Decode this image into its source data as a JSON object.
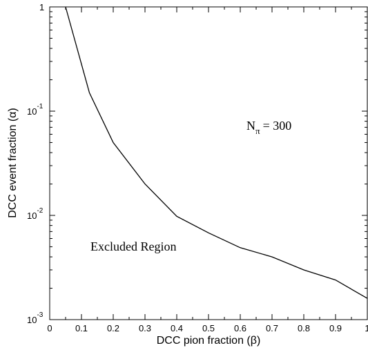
{
  "chart_data": {
    "type": "line",
    "xlabel": "DCC pion fraction (β)",
    "ylabel": "DCC event fraction (α)",
    "xlim": [
      0,
      1
    ],
    "ylim": [
      0.001,
      1
    ],
    "y_scale": "log",
    "grid": false,
    "x_ticks": [
      {
        "value": 0,
        "label": "0"
      },
      {
        "value": 0.1,
        "label": "0.1"
      },
      {
        "value": 0.2,
        "label": "0.2"
      },
      {
        "value": 0.3,
        "label": "0.3"
      },
      {
        "value": 0.4,
        "label": "0.4"
      },
      {
        "value": 0.5,
        "label": "0.5"
      },
      {
        "value": 0.6,
        "label": "0.6"
      },
      {
        "value": 0.7,
        "label": "0.7"
      },
      {
        "value": 0.8,
        "label": "0.8"
      },
      {
        "value": 0.9,
        "label": "0.9"
      },
      {
        "value": 1,
        "label": "1"
      }
    ],
    "y_ticks": [
      {
        "value": 1,
        "base": "1",
        "exp": ""
      },
      {
        "value": 0.1,
        "base": "10",
        "exp": "-1"
      },
      {
        "value": 0.01,
        "base": "10",
        "exp": "-2"
      },
      {
        "value": 0.001,
        "base": "10",
        "exp": "-3"
      }
    ],
    "series": [
      {
        "x": [
          0.05,
          0.125,
          0.2,
          0.3,
          0.4,
          0.5,
          0.6,
          0.7,
          0.8,
          0.9,
          1.0
        ],
        "y": [
          1.0,
          0.15,
          0.05,
          0.02,
          0.0098,
          0.0068,
          0.0049,
          0.004,
          0.003,
          0.0024,
          0.0016
        ]
      }
    ],
    "annotations": {
      "n_label": "N",
      "n_sub": "π",
      "n_value": "= 300",
      "region": "Excluded Region"
    }
  }
}
